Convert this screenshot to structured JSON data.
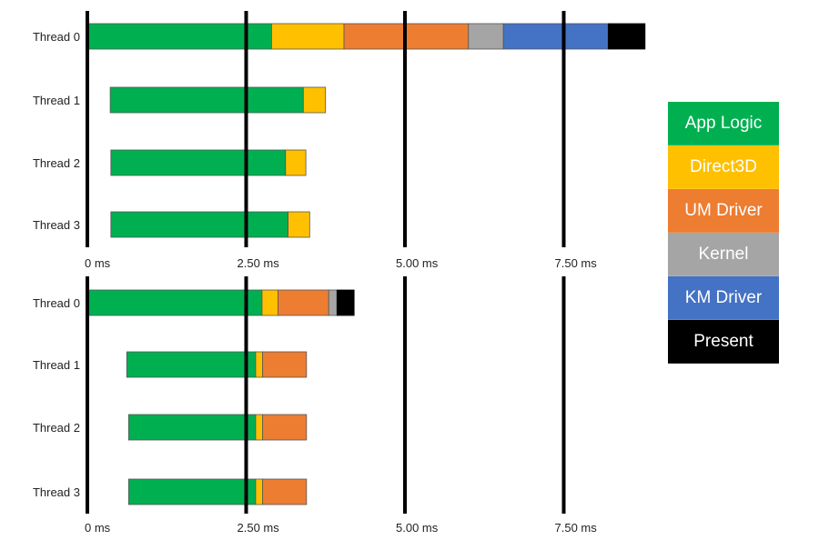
{
  "chart_data": [
    {
      "type": "bar",
      "orientation": "horizontal",
      "stacked": true,
      "x_unit": "ms",
      "xlim": [
        0,
        10.0
      ],
      "x_ticks": [
        {
          "value": 0,
          "label": "0 ms"
        },
        {
          "value": 2.5,
          "label": "2.50 ms"
        },
        {
          "value": 5.0,
          "label": "5.00 ms"
        },
        {
          "value": 7.5,
          "label": "7.50 ms"
        }
      ],
      "threads": [
        {
          "label": "Thread 0",
          "segments": [
            {
              "category": "App Logic",
              "start": 0.0,
              "end": 2.9
            },
            {
              "category": "Direct3D",
              "start": 2.9,
              "end": 4.04
            },
            {
              "category": "UM Driver",
              "start": 4.04,
              "end": 6.0
            },
            {
              "category": "Kernel",
              "start": 6.0,
              "end": 6.55
            },
            {
              "category": "KM Driver",
              "start": 6.55,
              "end": 8.2
            },
            {
              "category": "Present",
              "start": 8.2,
              "end": 8.78
            }
          ]
        },
        {
          "label": "Thread 1",
          "segments": [
            {
              "category": "App Logic",
              "start": 0.36,
              "end": 3.4
            },
            {
              "category": "Direct3D",
              "start": 3.4,
              "end": 3.75
            }
          ]
        },
        {
          "label": "Thread 2",
          "segments": [
            {
              "category": "App Logic",
              "start": 0.37,
              "end": 3.12
            },
            {
              "category": "Direct3D",
              "start": 3.12,
              "end": 3.44
            }
          ]
        },
        {
          "label": "Thread 3",
          "segments": [
            {
              "category": "App Logic",
              "start": 0.37,
              "end": 3.16
            },
            {
              "category": "Direct3D",
              "start": 3.16,
              "end": 3.5
            }
          ]
        }
      ]
    },
    {
      "type": "bar",
      "orientation": "horizontal",
      "stacked": true,
      "x_unit": "ms",
      "xlim": [
        0,
        10.0
      ],
      "x_ticks": [
        {
          "value": 0,
          "label": "0 ms"
        },
        {
          "value": 2.5,
          "label": "2.50 ms"
        },
        {
          "value": 5.0,
          "label": "5.00 ms"
        },
        {
          "value": 7.5,
          "label": "7.50 ms"
        }
      ],
      "threads": [
        {
          "label": "Thread 0",
          "segments": [
            {
              "category": "App Logic",
              "start": 0.0,
              "end": 2.75
            },
            {
              "category": "Direct3D",
              "start": 2.75,
              "end": 3.0
            },
            {
              "category": "UM Driver",
              "start": 3.0,
              "end": 3.8
            },
            {
              "category": "Kernel",
              "start": 3.8,
              "end": 3.93
            },
            {
              "category": "Present",
              "start": 3.93,
              "end": 4.2
            }
          ]
        },
        {
          "label": "Thread 1",
          "segments": [
            {
              "category": "App Logic",
              "start": 0.62,
              "end": 2.65
            },
            {
              "category": "Direct3D",
              "start": 2.65,
              "end": 2.76
            },
            {
              "category": "UM Driver",
              "start": 2.76,
              "end": 3.45
            }
          ]
        },
        {
          "label": "Thread 2",
          "segments": [
            {
              "category": "App Logic",
              "start": 0.65,
              "end": 2.65
            },
            {
              "category": "Direct3D",
              "start": 2.65,
              "end": 2.76
            },
            {
              "category": "UM Driver",
              "start": 2.76,
              "end": 3.45
            }
          ]
        },
        {
          "label": "Thread 3",
          "segments": [
            {
              "category": "App Logic",
              "start": 0.65,
              "end": 2.65
            },
            {
              "category": "Direct3D",
              "start": 2.65,
              "end": 2.76
            },
            {
              "category": "UM Driver",
              "start": 2.76,
              "end": 3.45
            }
          ]
        }
      ]
    }
  ],
  "legend": {
    "placement": "right",
    "items": [
      {
        "label": "App Logic",
        "color": "#00B050",
        "text_color": "#ffffff"
      },
      {
        "label": "Direct3D",
        "color": "#FFC000",
        "text_color": "#ffffff"
      },
      {
        "label": "UM Driver",
        "color": "#ED7D31",
        "text_color": "#ffffff"
      },
      {
        "label": "Kernel",
        "color": "#A5A5A5",
        "text_color": "#ffffff"
      },
      {
        "label": "KM Driver",
        "color": "#4472C4",
        "text_color": "#ffffff"
      },
      {
        "label": "Present",
        "color": "#000000",
        "text_color": "#ffffff"
      }
    ]
  }
}
